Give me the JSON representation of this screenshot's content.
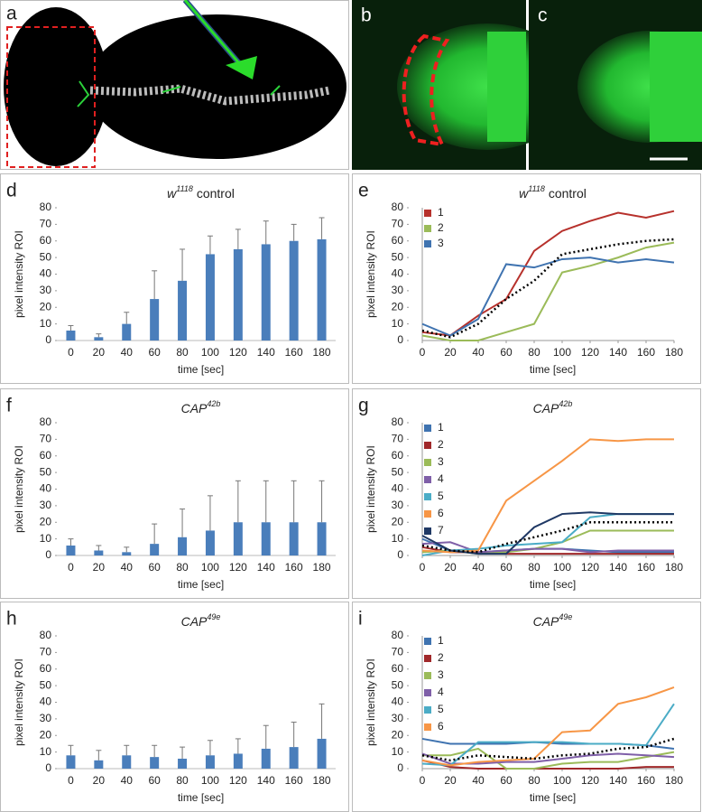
{
  "panel_labels": [
    "a",
    "b",
    "c"
  ],
  "chart_data": [
    {
      "panel": "d",
      "type": "bar",
      "title": "w",
      "title_sup": "1118",
      "title_rest": " control",
      "ylabel": "pixel intensity  ROI",
      "xlabel": "time [sec]",
      "categories": [
        "0",
        "20",
        "40",
        "60",
        "80",
        "100",
        "120",
        "140",
        "160",
        "180"
      ],
      "values": [
        6,
        2,
        10,
        25,
        36,
        52,
        55,
        58,
        60,
        61
      ],
      "errors": [
        3,
        2,
        7,
        17,
        19,
        11,
        12,
        14,
        10,
        13
      ],
      "color": "#4a7ebb",
      "ylim": [
        0,
        80
      ],
      "yticks": [
        0,
        10,
        20,
        30,
        40,
        50,
        60,
        70,
        80
      ]
    },
    {
      "panel": "e",
      "type": "line",
      "title": "w",
      "title_sup": "1118",
      "title_rest": " control",
      "ylabel": "pixel intensity  ROI",
      "xlabel": "time [sec]",
      "x": [
        0,
        20,
        40,
        60,
        80,
        100,
        120,
        140,
        160,
        180
      ],
      "xlim": [
        0,
        180
      ],
      "xticks": [
        0,
        20,
        40,
        60,
        80,
        100,
        120,
        140,
        160,
        180
      ],
      "ylim": [
        0,
        80
      ],
      "yticks": [
        0,
        10,
        20,
        30,
        40,
        50,
        60,
        70,
        80
      ],
      "series": [
        {
          "name": "1",
          "color": "#b7312c",
          "values": [
            5,
            3,
            15,
            25,
            54,
            66,
            72,
            77,
            74,
            78
          ]
        },
        {
          "name": "2",
          "color": "#9bbb59",
          "values": [
            3,
            0,
            0,
            5,
            10,
            41,
            45,
            50,
            56,
            59
          ]
        },
        {
          "name": "3",
          "color": "#3f73b0",
          "values": [
            10,
            3,
            13,
            46,
            44,
            49,
            50,
            47,
            49,
            47
          ]
        },
        {
          "color": "#000000",
          "style": "dotted",
          "values": [
            6,
            2,
            10,
            25,
            36,
            52,
            55,
            58,
            60,
            61
          ]
        }
      ]
    },
    {
      "panel": "f",
      "type": "bar",
      "title": "CAP",
      "title_sup": "42b",
      "ylabel": "pixel intensity  ROI",
      "xlabel": "time [sec]",
      "categories": [
        "0",
        "20",
        "40",
        "60",
        "80",
        "100",
        "120",
        "140",
        "160",
        "180"
      ],
      "values": [
        6,
        3,
        2,
        7,
        11,
        15,
        20,
        20,
        20,
        20
      ],
      "errors": [
        4,
        3,
        3,
        12,
        17,
        21,
        25,
        25,
        25,
        25
      ],
      "color": "#4a7ebb",
      "ylim": [
        0,
        80
      ],
      "yticks": [
        0,
        10,
        20,
        30,
        40,
        50,
        60,
        70,
        80
      ]
    },
    {
      "panel": "g",
      "type": "line",
      "title": "CAP",
      "title_sup": "42b",
      "ylabel": "pixel intensity  ROI",
      "xlabel": "time [sec]",
      "x": [
        0,
        20,
        40,
        60,
        80,
        100,
        120,
        140,
        160,
        180
      ],
      "xlim": [
        0,
        180
      ],
      "xticks": [
        0,
        20,
        40,
        60,
        80,
        100,
        120,
        140,
        160,
        180
      ],
      "ylim": [
        0,
        80
      ],
      "yticks": [
        0,
        10,
        20,
        30,
        40,
        50,
        60,
        70,
        80
      ],
      "series": [
        {
          "name": "1",
          "color": "#3f73b0",
          "values": [
            10,
            3,
            2,
            3,
            4,
            4,
            3,
            2,
            2,
            2
          ]
        },
        {
          "name": "2",
          "color": "#a0282a",
          "values": [
            5,
            2,
            2,
            1,
            1,
            1,
            1,
            1,
            1,
            1
          ]
        },
        {
          "name": "3",
          "color": "#9bbb59",
          "values": [
            2,
            3,
            1,
            2,
            4,
            8,
            15,
            15,
            15,
            15
          ]
        },
        {
          "name": "4",
          "color": "#7f5fa8",
          "values": [
            7,
            8,
            2,
            3,
            4,
            4,
            2,
            3,
            3,
            3
          ]
        },
        {
          "name": "5",
          "color": "#4bacc6",
          "values": [
            0,
            3,
            4,
            6,
            7,
            8,
            23,
            25,
            25,
            25
          ]
        },
        {
          "name": "6",
          "color": "#f79646",
          "values": [
            3,
            2,
            3,
            33,
            45,
            57,
            70,
            69,
            70,
            70
          ]
        },
        {
          "name": "7",
          "color": "#1f3864",
          "values": [
            12,
            3,
            1,
            1,
            17,
            25,
            26,
            25,
            25,
            25
          ]
        },
        {
          "color": "#000000",
          "style": "dotted",
          "values": [
            6,
            3,
            2,
            7,
            11,
            15,
            20,
            20,
            20,
            20
          ]
        }
      ]
    },
    {
      "panel": "h",
      "type": "bar",
      "title": "CAP",
      "title_sup": "49e",
      "ylabel": "pixel intensity  ROI",
      "xlabel": "time [sec]",
      "categories": [
        "0",
        "20",
        "40",
        "60",
        "80",
        "100",
        "120",
        "140",
        "160",
        "180"
      ],
      "values": [
        8,
        5,
        8,
        7,
        6,
        8,
        9,
        12,
        13,
        18
      ],
      "errors": [
        6,
        6,
        6,
        7,
        7,
        9,
        9,
        14,
        15,
        21
      ],
      "color": "#4a7ebb",
      "ylim": [
        0,
        80
      ],
      "yticks": [
        0,
        10,
        20,
        30,
        40,
        50,
        60,
        70,
        80
      ]
    },
    {
      "panel": "i",
      "type": "line",
      "title": "CAP",
      "title_sup": "49e",
      "ylabel": "pixel intensity  ROI",
      "xlabel": "time [sec]",
      "x": [
        0,
        20,
        40,
        60,
        80,
        100,
        120,
        140,
        160,
        180
      ],
      "xlim": [
        0,
        180
      ],
      "xticks": [
        0,
        20,
        40,
        60,
        80,
        100,
        120,
        140,
        160,
        180
      ],
      "ylim": [
        0,
        80
      ],
      "yticks": [
        0,
        10,
        20,
        30,
        40,
        50,
        60,
        70,
        80
      ],
      "series": [
        {
          "name": "1",
          "color": "#3f73b0",
          "values": [
            18,
            15,
            15,
            15,
            16,
            15,
            15,
            15,
            14,
            12
          ]
        },
        {
          "name": "2",
          "color": "#a0282a",
          "values": [
            5,
            1,
            0,
            0,
            0,
            0,
            0,
            0,
            1,
            1
          ]
        },
        {
          "name": "3",
          "color": "#9bbb59",
          "values": [
            8,
            8,
            12,
            0,
            0,
            3,
            4,
            4,
            7,
            10
          ]
        },
        {
          "name": "4",
          "color": "#7f5fa8",
          "values": [
            9,
            3,
            3,
            4,
            4,
            6,
            8,
            9,
            8,
            7
          ]
        },
        {
          "name": "5",
          "color": "#4bacc6",
          "values": [
            3,
            2,
            16,
            16,
            16,
            16,
            15,
            15,
            14,
            39
          ]
        },
        {
          "name": "6",
          "color": "#f79646",
          "values": [
            5,
            2,
            4,
            5,
            6,
            22,
            23,
            39,
            43,
            49
          ]
        },
        {
          "color": "#000000",
          "style": "dotted",
          "values": [
            8,
            5,
            8,
            7,
            6,
            8,
            9,
            12,
            13,
            18
          ]
        }
      ]
    }
  ]
}
